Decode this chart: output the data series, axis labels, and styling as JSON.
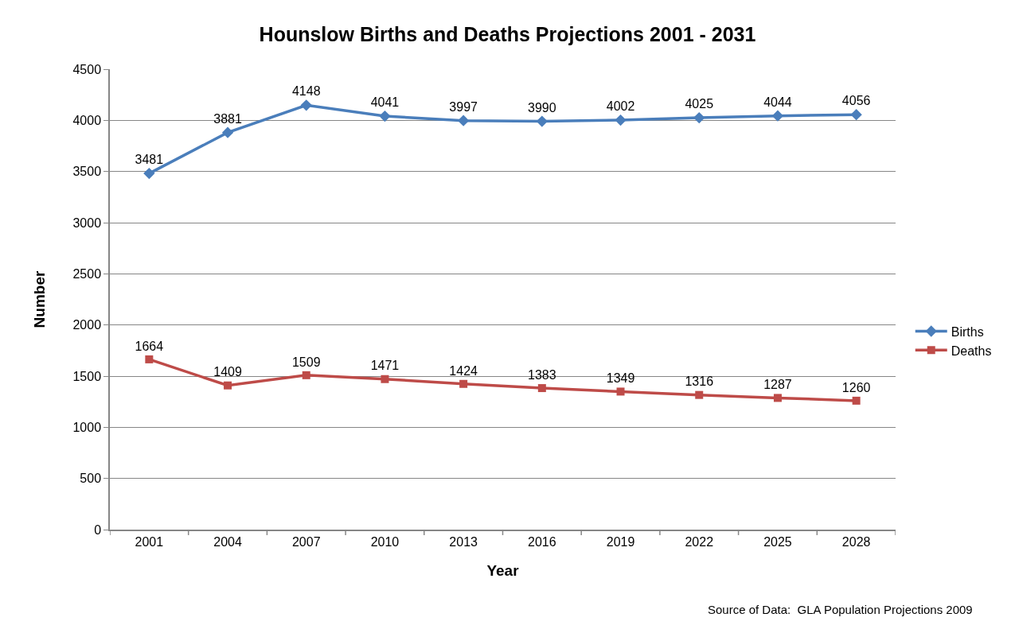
{
  "chart_data": {
    "type": "line",
    "title": "Hounslow Births and Deaths Projections 2001 - 2031",
    "xlabel": "Year",
    "ylabel": "Number",
    "categories": [
      "2001",
      "2004",
      "2007",
      "2010",
      "2013",
      "2016",
      "2019",
      "2022",
      "2025",
      "2028"
    ],
    "series": [
      {
        "name": "Births",
        "color": "#4a7ebb",
        "marker": "diamond",
        "values": [
          3481,
          3881,
          4148,
          4041,
          3997,
          3990,
          4002,
          4025,
          4044,
          4056
        ]
      },
      {
        "name": "Deaths",
        "color": "#be4b48",
        "marker": "square",
        "values": [
          1664,
          1409,
          1509,
          1471,
          1424,
          1383,
          1349,
          1316,
          1287,
          1260
        ]
      }
    ],
    "ylim": [
      0,
      4500
    ],
    "yticks": [
      0,
      500,
      1000,
      1500,
      2000,
      2500,
      3000,
      3500,
      4000,
      4500
    ],
    "grid": "y",
    "legend": "right",
    "data_labels": true,
    "line_style": "solid",
    "annotations": [
      "Source of Data:  GLA Population Projections 2009"
    ]
  }
}
